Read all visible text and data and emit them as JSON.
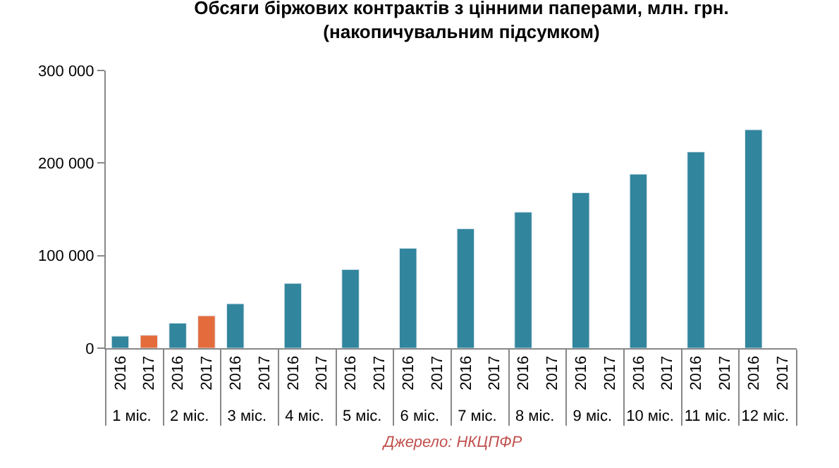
{
  "chart_data": {
    "type": "bar",
    "title": "Обсяги біржових контрактів з цінними паперами, млн. грн.\n(накопичувальним підсумком)",
    "categories": [
      "1 міс.",
      "2 міс.",
      "3 міс.",
      "4 міс.",
      "5 міс.",
      "6 міс.",
      "7 міс.",
      "8 міс.",
      "9 міс.",
      "10 міс.",
      "11 міс.",
      "12 міс."
    ],
    "series": [
      {
        "name": "2016",
        "color": "#31859c",
        "values": [
          13000,
          27000,
          48000,
          70000,
          85000,
          108000,
          129000,
          147000,
          168000,
          188000,
          212000,
          236000
        ]
      },
      {
        "name": "2017",
        "color": "#e46c3c",
        "values": [
          14000,
          35000,
          null,
          null,
          null,
          null,
          null,
          null,
          null,
          null,
          null,
          null
        ]
      }
    ],
    "ylim": [
      0,
      300000
    ],
    "yticks": [
      0,
      {
        "value": 100000,
        "label": "100 000"
      },
      {
        "value": 200000,
        "label": "200 000"
      },
      {
        "value": 300000,
        "label": "300 000"
      }
    ],
    "legend": false,
    "annotations": [
      "Джерело: НКЦПФР"
    ]
  }
}
